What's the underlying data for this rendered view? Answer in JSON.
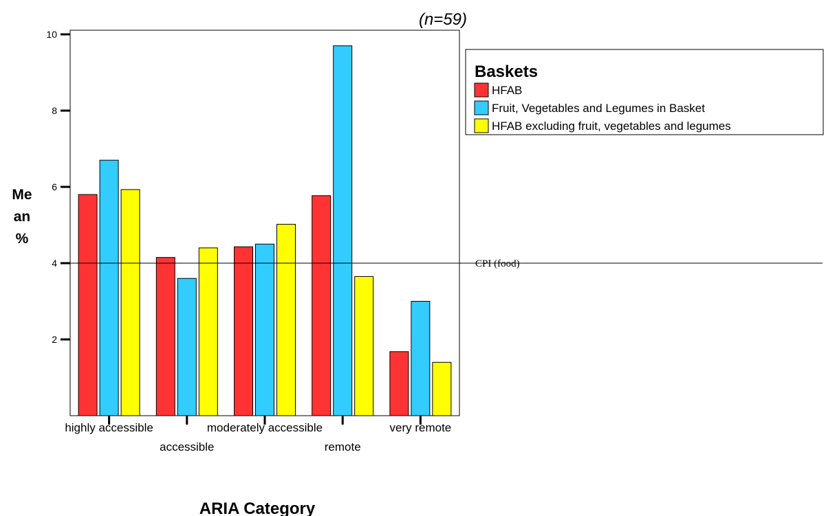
{
  "chart_data": {
    "type": "bar",
    "title": "",
    "subtitle": "(n=59)",
    "xlabel": "ARIA Category",
    "ylabel_lines": [
      "Me",
      "an",
      "%"
    ],
    "ylim": [
      0,
      10
    ],
    "yticks": [
      "2",
      "4",
      "6",
      "8",
      "10"
    ],
    "categories": [
      "highly accessible",
      "accessible",
      "moderately accessible",
      "remote",
      "very remote"
    ],
    "series": [
      {
        "name": "HFAB",
        "color": "#ff3333",
        "values": [
          5.8,
          4.15,
          4.43,
          5.77,
          1.68
        ]
      },
      {
        "name": "Fruit, Vegetables and Legumes in Basket",
        "color": "#33ccff",
        "values": [
          6.7,
          3.6,
          4.5,
          9.7,
          3.0
        ]
      },
      {
        "name": "HFAB excluding fruit, vegetables and legumes",
        "color": "#ffff00",
        "values": [
          5.93,
          4.4,
          5.02,
          3.65,
          1.4
        ]
      }
    ],
    "legend": {
      "title": "Baskets",
      "placement": "top-right"
    },
    "reference_line": {
      "value": 4,
      "label": "CPI (food)"
    },
    "grid": false
  }
}
